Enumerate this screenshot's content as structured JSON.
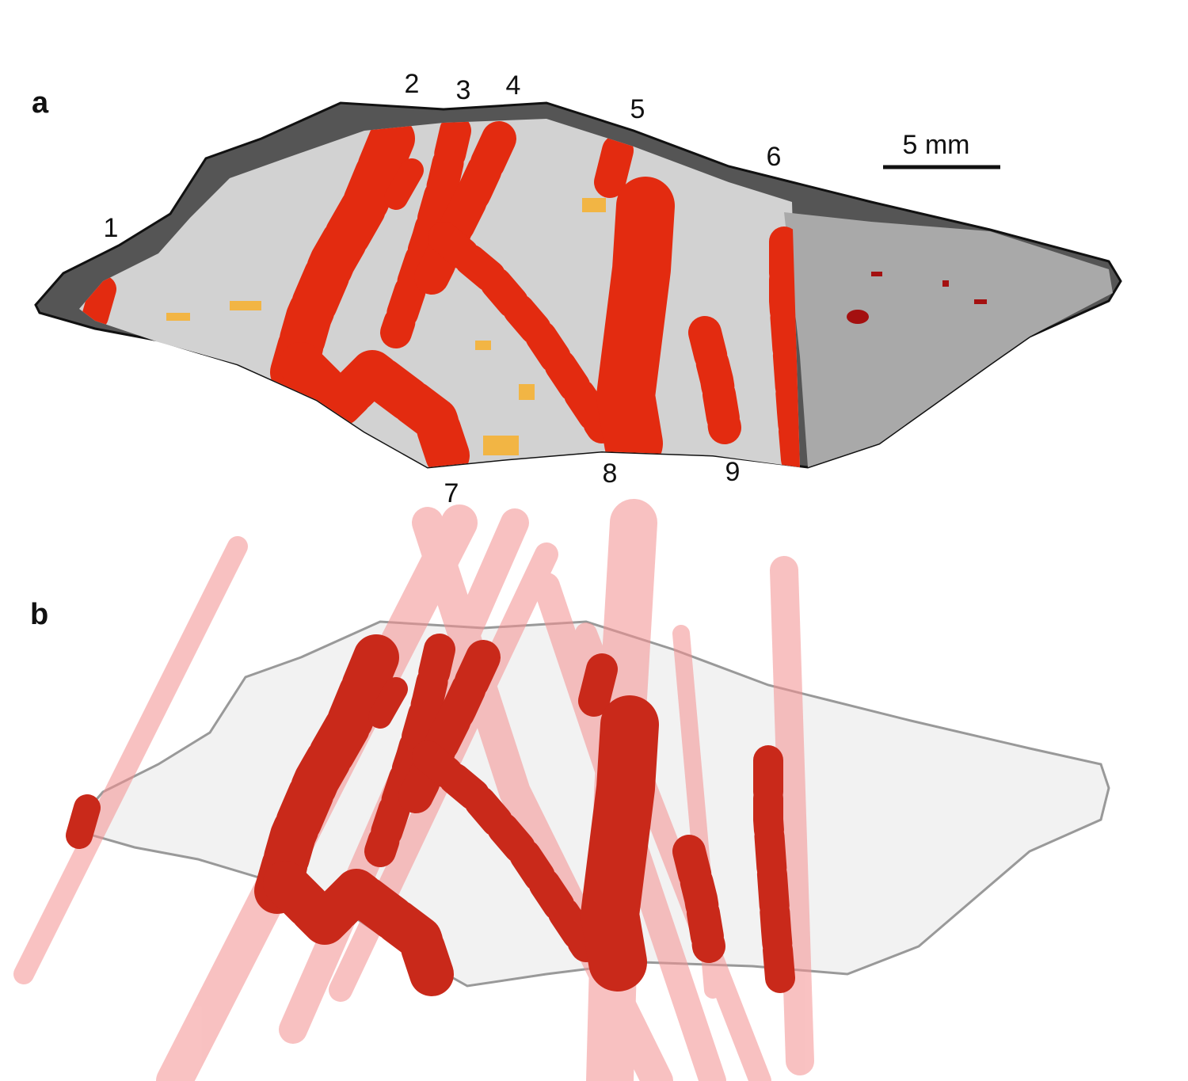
{
  "panel_a": {
    "label": "a",
    "site_labels": [
      "1",
      "2",
      "3",
      "4",
      "5",
      "6",
      "7",
      "8",
      "9"
    ],
    "scale_bar": "5 mm"
  },
  "panel_b": {
    "label": "b"
  }
}
